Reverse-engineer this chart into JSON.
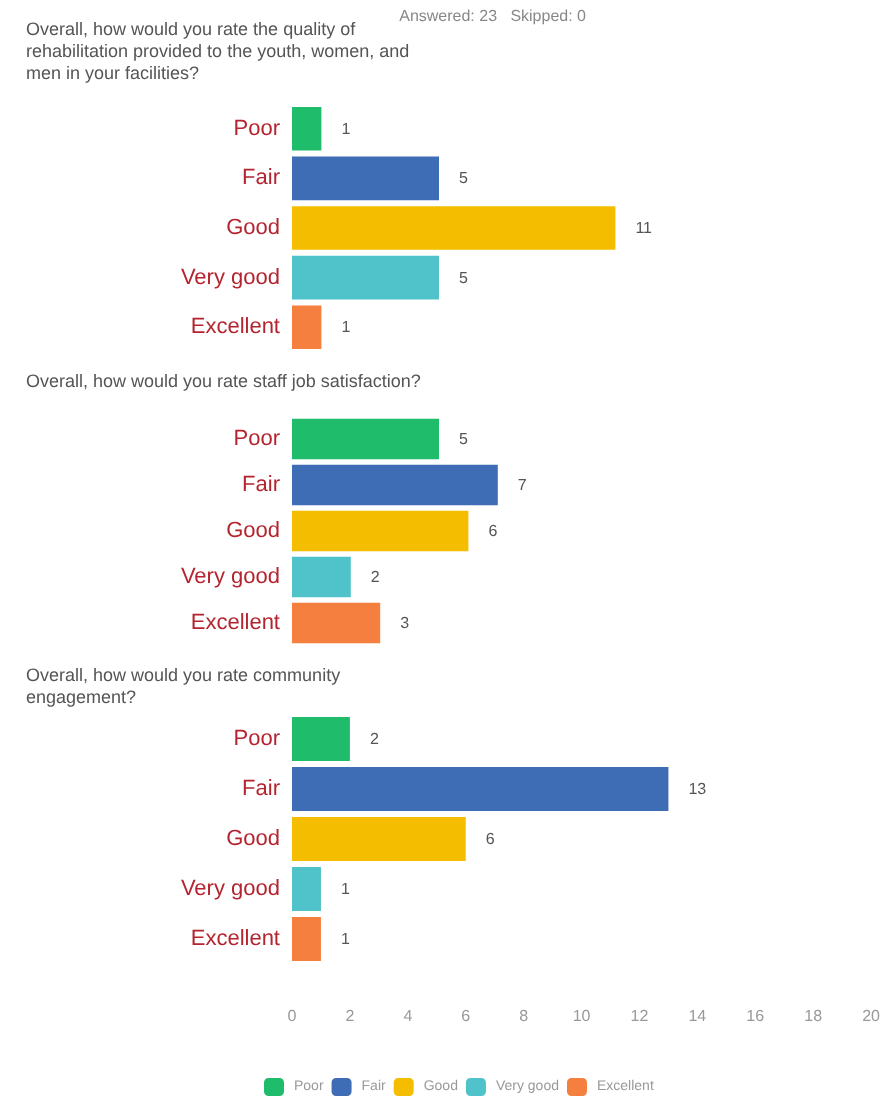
{
  "chart_data": [
    {
      "type": "bar",
      "orientation": "horizontal",
      "stacked": true,
      "title": "Overall, how would you rate the quality of rehabilitation provided to the youth, women, and men in your facilities?",
      "annotations": [
        "Answered: 23   Skipped: 0"
      ],
      "categories": [
        "Poor",
        "Fair",
        "Good",
        "Very good",
        "Excellent"
      ],
      "series": [
        {
          "color": "#1fbd6b",
          "values": [
            1,
            null,
            null,
            null,
            null
          ]
        },
        {
          "color": "#3e6db5",
          "values": [
            null,
            5,
            null,
            null,
            null
          ]
        },
        {
          "color": "#f5bd00",
          "values": [
            null,
            null,
            11,
            null,
            null
          ]
        },
        {
          "color": "#4fc3c9",
          "values": [
            null,
            null,
            null,
            5,
            null
          ]
        },
        {
          "color": "#f57f3f",
          "values": [
            null,
            null,
            null,
            null,
            1
          ]
        }
      ],
      "xlim": [
        0,
        20
      ],
      "xticks": [
        0,
        2,
        4,
        6,
        8,
        10,
        12,
        14,
        16,
        18,
        20
      ],
      "tick_labels": "y",
      "data_labels": true
    },
    {
      "type": "bar",
      "orientation": "horizontal",
      "stacked": true,
      "title": "Overall, how would you rate staff job satisfaction?",
      "categories": [
        "Poor",
        "Fair",
        "Good",
        "Very good",
        "Excellent"
      ],
      "series": [
        {
          "color": "#1fbd6b",
          "values": [
            5,
            null,
            null,
            null,
            null
          ]
        },
        {
          "color": "#3e6db5",
          "values": [
            null,
            7,
            null,
            null,
            null
          ]
        },
        {
          "color": "#f5bd00",
          "values": [
            null,
            null,
            6,
            null,
            null
          ]
        },
        {
          "color": "#4fc3c9",
          "values": [
            null,
            null,
            null,
            2,
            null
          ]
        },
        {
          "color": "#f57f3f",
          "values": [
            null,
            null,
            null,
            null,
            3
          ]
        }
      ],
      "xlim": [
        0,
        20
      ],
      "xticks": [
        0,
        2,
        4,
        6,
        8,
        10,
        12,
        14,
        16,
        18,
        20
      ],
      "tick_labels": "y",
      "data_labels": true
    },
    {
      "type": "bar",
      "orientation": "horizontal",
      "stacked": true,
      "title": "Overall, how would you rate community engagement?",
      "categories": [
        "Poor",
        "Fair",
        "Good",
        "Very good",
        "Excellent"
      ],
      "series": [
        {
          "name": "Poor",
          "color": "#1fbd6b",
          "values": [
            2,
            null,
            null,
            null,
            null
          ]
        },
        {
          "name": "Fair",
          "color": "#3e6db5",
          "values": [
            null,
            13,
            null,
            null,
            null
          ]
        },
        {
          "name": "Good",
          "color": "#f5bd00",
          "values": [
            null,
            null,
            6,
            null,
            null
          ]
        },
        {
          "name": "Very good",
          "color": "#4fc3c9",
          "values": [
            null,
            null,
            null,
            1,
            null
          ]
        },
        {
          "name": "Excellent",
          "color": "#f57f3f",
          "values": [
            null,
            null,
            null,
            null,
            1
          ]
        }
      ],
      "xlim": [
        0,
        20
      ],
      "xticks": [
        0,
        2,
        4,
        6,
        8,
        10,
        12,
        14,
        16,
        18,
        20
      ],
      "data_labels": true,
      "legend": "bottom"
    }
  ]
}
